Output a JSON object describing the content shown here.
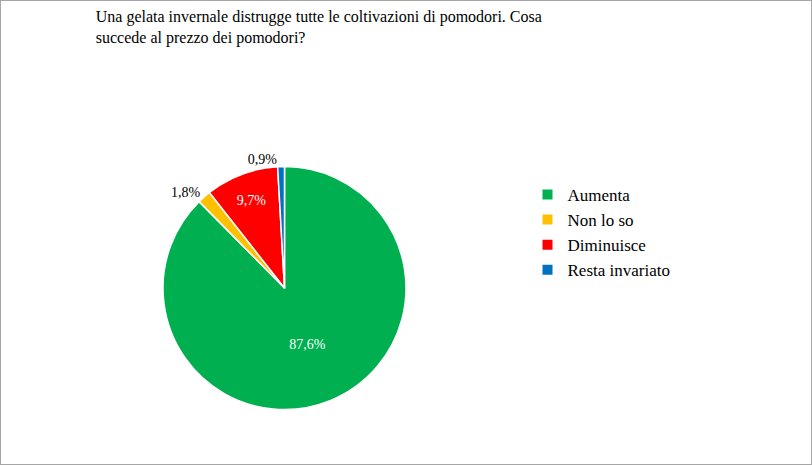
{
  "chart_data": {
    "type": "pie",
    "title": "Una gelata invernale distrugge tutte le coltivazioni di pomodori. Cosa\nsuccede al prezzo dei pomodori?",
    "categories": [
      "Aumenta",
      "Non lo so",
      "Diminuisce",
      "Resta invariato"
    ],
    "values": [
      87.6,
      1.8,
      9.7,
      0.9
    ],
    "value_labels": [
      "87,6%",
      "1,8%",
      "9,7%",
      "0,9%"
    ],
    "colors": [
      "#00b050",
      "#ffc000",
      "#ff0000",
      "#0070c0"
    ],
    "data_labels": true,
    "legend": "right"
  }
}
